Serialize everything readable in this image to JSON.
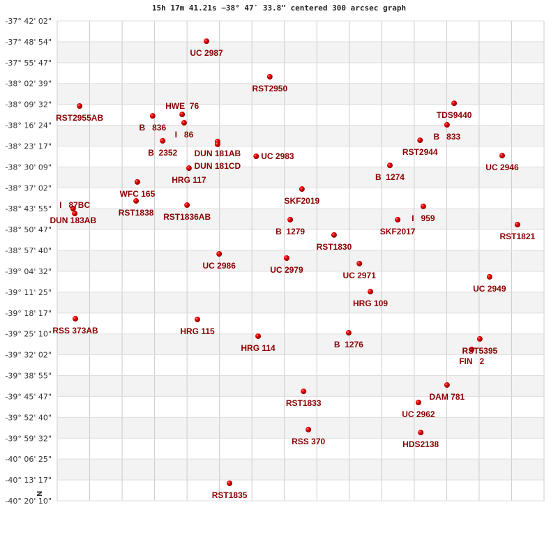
{
  "chart_data": {
    "type": "scatter",
    "title": "15h 17m 41.21s −38° 47′ 33.8\" centered 300 arcsec graph",
    "ylabel": "",
    "xlabel": "",
    "xlim": [
      0,
      15
    ],
    "ylim": [
      -37.7006,
      -40.3361
    ],
    "grid": true,
    "point_color": "#dd0000",
    "label_color": "#8b0000",
    "orientation_marker": "N",
    "yticks": [
      "-37° 42' 02\"",
      "-37° 48' 54\"",
      "-37° 55' 47\"",
      "-38° 02' 39\"",
      "-38° 09' 32\"",
      "-38° 16' 24\"",
      "-38° 23' 17\"",
      "-38° 30' 09\"",
      "-38° 37' 02\"",
      "-38° 43' 55\"",
      "-38° 50' 47\"",
      "-38° 57' 40\"",
      "-39° 04' 32\"",
      "-39° 11' 25\"",
      "-39° 18' 17\"",
      "-39° 25' 10\"",
      "-39° 32' 02\"",
      "-39° 38' 55\"",
      "-39° 45' 47\"",
      "-39° 52' 40\"",
      "-39° 59' 32\"",
      "-40° 06' 25\"",
      "-40° 13' 17\"",
      "-40° 20' 10\""
    ],
    "points": [
      {
        "label": "UC 2987",
        "x": 4.6,
        "y": -37.812
      },
      {
        "label": "RST2950",
        "x": 6.55,
        "y": -38.007
      },
      {
        "label": "RST2955AB",
        "x": 0.69,
        "y": -38.168
      },
      {
        "label": "B   836",
        "x": 2.94,
        "y": -38.222
      },
      {
        "label": "HWE  76",
        "x": 3.85,
        "y": -38.214
      },
      {
        "label": "I   86",
        "x": 3.91,
        "y": -38.26
      },
      {
        "label": "B  2352",
        "x": 3.25,
        "y": -38.359
      },
      {
        "label": "DUN 181AB",
        "x": 4.94,
        "y": -38.363
      },
      {
        "label": "DUN 181CD",
        "x": 4.94,
        "y": -38.378
      },
      {
        "label": "UC 2983",
        "x": 6.13,
        "y": -38.444
      },
      {
        "label": "HRG 117",
        "x": 4.06,
        "y": -38.509
      },
      {
        "label": "TDS9440",
        "x": 12.23,
        "y": -38.153
      },
      {
        "label": "B   833",
        "x": 12.01,
        "y": -38.271
      },
      {
        "label": "RST2944",
        "x": 11.18,
        "y": -38.356
      },
      {
        "label": "UC 2946",
        "x": 13.71,
        "y": -38.44
      },
      {
        "label": "B  1274",
        "x": 10.25,
        "y": -38.494
      },
      {
        "label": "SKF2019",
        "x": 7.54,
        "y": -38.624
      },
      {
        "label": "WFC 165",
        "x": 2.47,
        "y": -38.585
      },
      {
        "label": "RST1838",
        "x": 2.43,
        "y": -38.689
      },
      {
        "label": "RST1836AB",
        "x": 4.0,
        "y": -38.712
      },
      {
        "label": "DUN 183AB",
        "x": 0.49,
        "y": -38.731
      },
      {
        "label": "I   87BC",
        "x": 0.54,
        "y": -38.758
      },
      {
        "label": "B  1279",
        "x": 7.18,
        "y": -38.792
      },
      {
        "label": "I   959",
        "x": 11.28,
        "y": -38.719
      },
      {
        "label": "SKF2017",
        "x": 10.49,
        "y": -38.792
      },
      {
        "label": "RST1821",
        "x": 14.18,
        "y": -38.819
      },
      {
        "label": "RST1830",
        "x": 8.53,
        "y": -38.876
      },
      {
        "label": "UC 2986",
        "x": 4.99,
        "y": -38.98
      },
      {
        "label": "UC 2979",
        "x": 7.07,
        "y": -39.003
      },
      {
        "label": "UC 2971",
        "x": 9.31,
        "y": -39.033
      },
      {
        "label": "UC 2949",
        "x": 13.32,
        "y": -39.106
      },
      {
        "label": "HRG 109",
        "x": 9.65,
        "y": -39.187
      },
      {
        "label": "RSS 373AB",
        "x": 0.56,
        "y": -39.336
      },
      {
        "label": "HRG 115",
        "x": 4.32,
        "y": -39.34
      },
      {
        "label": "HRG 114",
        "x": 6.19,
        "y": -39.432
      },
      {
        "label": "B  1276",
        "x": 8.98,
        "y": -39.413
      },
      {
        "label": "RST5395",
        "x": 13.02,
        "y": -39.447
      },
      {
        "label": "FIN   2",
        "x": 12.77,
        "y": -39.505
      },
      {
        "label": "DAM 781",
        "x": 12.01,
        "y": -39.7
      },
      {
        "label": "RST1833",
        "x": 7.59,
        "y": -39.735
      },
      {
        "label": "UC 2962",
        "x": 11.13,
        "y": -39.796
      },
      {
        "label": "RSS 370",
        "x": 7.74,
        "y": -39.945
      },
      {
        "label": "HDS2138",
        "x": 11.2,
        "y": -39.961
      },
      {
        "label": "RST1835",
        "x": 5.31,
        "y": -40.24
      }
    ]
  }
}
